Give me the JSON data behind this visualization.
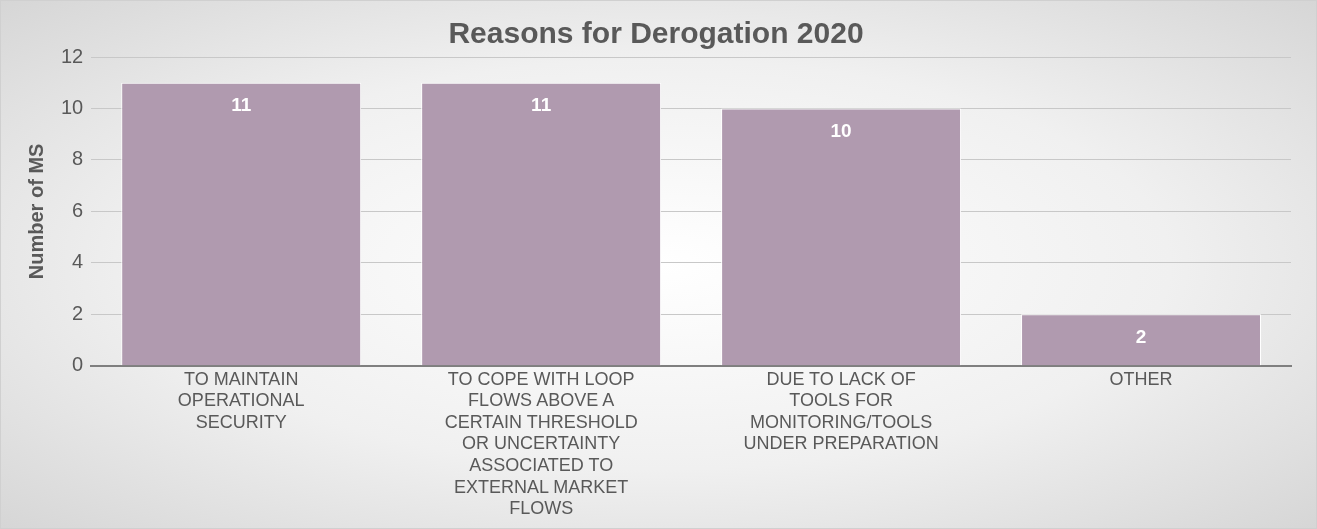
{
  "chart_data": {
    "type": "bar",
    "title": "Reasons for Derogation 2020",
    "ylabel": "Number of MS",
    "categories": [
      "TO MAINTAIN OPERATIONAL SECURITY",
      "TO COPE WITH LOOP FLOWS ABOVE A CERTAIN THRESHOLD OR UNCERTAINTY ASSOCIATED TO EXTERNAL MARKET FLOWS",
      "DUE TO LACK OF TOOLS FOR MONITORING/TOOLS UNDER PREPARATION",
      "OTHER"
    ],
    "values": [
      11,
      11,
      10,
      2
    ],
    "color": "#b09aaf",
    "ylim": [
      0,
      12
    ],
    "yticks": [
      0,
      2,
      4,
      6,
      8,
      10,
      12
    ],
    "grid": "y",
    "data_labels": true,
    "legend": false
  }
}
